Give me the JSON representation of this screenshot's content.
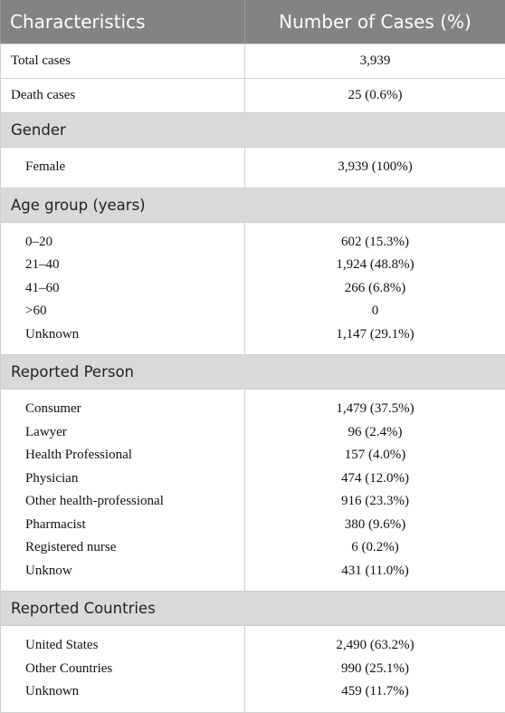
{
  "table": {
    "headers": {
      "characteristics": "Characteristics",
      "cases": "Number of Cases (%)"
    },
    "top_rows": [
      {
        "label": "Total cases",
        "value": "3,939"
      },
      {
        "label": "Death cases",
        "value": "25 (0.6%)"
      }
    ],
    "sections": [
      {
        "title": "Gender",
        "rows": [
          {
            "label": "Female",
            "value": "3,939 (100%)"
          }
        ]
      },
      {
        "title": "Age group (years)",
        "rows": [
          {
            "label": "0–20",
            "value": "602 (15.3%)"
          },
          {
            "label": "21–40",
            "value": "1,924 (48.8%)"
          },
          {
            "label": "41–60",
            "value": "266 (6.8%)"
          },
          {
            "label": ">60",
            "value": "0"
          },
          {
            "label": "Unknown",
            "value": "1,147 (29.1%)"
          }
        ]
      },
      {
        "title": "Reported Person",
        "rows": [
          {
            "label": "Consumer",
            "value": "1,479 (37.5%)"
          },
          {
            "label": "Lawyer",
            "value": "96 (2.4%)"
          },
          {
            "label": "Health Professional",
            "value": "157 (4.0%)"
          },
          {
            "label": "Physician",
            "value": "474 (12.0%)"
          },
          {
            "label": "Other health-professional",
            "value": "916 (23.3%)"
          },
          {
            "label": "Pharmacist",
            "value": "380 (9.6%)"
          },
          {
            "label": "Registered nurse",
            "value": "6 (0.2%)"
          },
          {
            "label": "Unknow",
            "value": "431 (11.0%)"
          }
        ]
      },
      {
        "title": "Reported Countries",
        "rows": [
          {
            "label": "United States",
            "value": "2,490 (63.2%)"
          },
          {
            "label": "Other Countries",
            "value": "990 (25.1%)"
          },
          {
            "label": "Unknown",
            "value": "459 (11.7%)"
          }
        ]
      }
    ]
  }
}
